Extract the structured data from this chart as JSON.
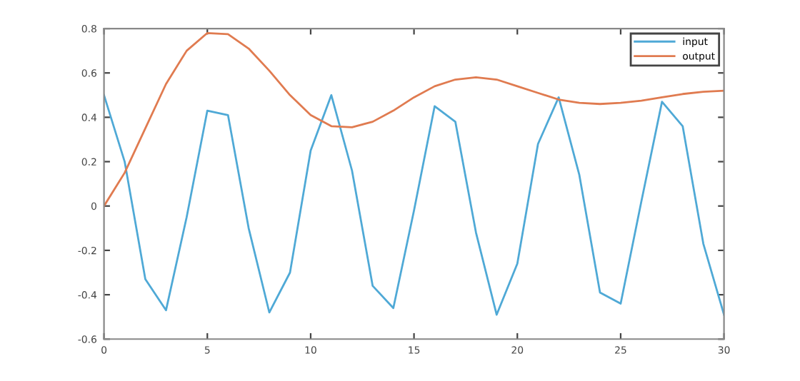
{
  "chart_data": {
    "type": "line",
    "x": [
      0,
      1,
      2,
      3,
      4,
      5,
      6,
      7,
      8,
      9,
      10,
      11,
      12,
      13,
      14,
      15,
      16,
      17,
      18,
      19,
      20,
      21,
      22,
      23,
      24,
      25,
      26,
      27,
      28,
      29,
      30
    ],
    "series": [
      {
        "name": "input",
        "color": "#4fa9d6",
        "values": [
          0.5,
          0.2,
          -0.33,
          -0.47,
          -0.05,
          0.43,
          0.41,
          -0.1,
          -0.48,
          -0.3,
          0.25,
          0.5,
          0.16,
          -0.36,
          -0.46,
          -0.02,
          0.45,
          0.38,
          -0.12,
          -0.49,
          -0.26,
          0.28,
          0.49,
          0.14,
          -0.39,
          -0.44,
          0.02,
          0.47,
          0.36,
          -0.17,
          -0.49
        ]
      },
      {
        "name": "output",
        "color": "#e07b50",
        "values": [
          0,
          0.15,
          0.35,
          0.55,
          0.7,
          0.78,
          0.775,
          0.71,
          0.61,
          0.5,
          0.41,
          0.36,
          0.355,
          0.38,
          0.43,
          0.49,
          0.54,
          0.57,
          0.58,
          0.57,
          0.54,
          0.51,
          0.48,
          0.465,
          0.46,
          0.465,
          0.475,
          0.49,
          0.505,
          0.515,
          0.52
        ]
      }
    ],
    "xlim": [
      0,
      30
    ],
    "xticks": [
      0,
      5,
      10,
      15,
      20,
      25,
      30
    ],
    "ylim": [
      -0.6,
      0.8
    ],
    "yticks": [
      -0.6,
      -0.4,
      -0.2,
      0,
      0.2,
      0.4,
      0.6,
      0.8
    ],
    "grid": false,
    "legend": "top right"
  }
}
